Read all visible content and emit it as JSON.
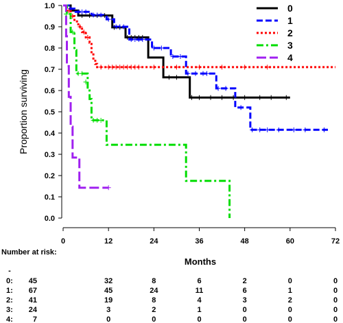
{
  "chart_data": {
    "type": "line",
    "subtype": "kaplan-meier step curves",
    "ylabel": "Proportion surviving",
    "xlabel": "Months",
    "xlim": [
      0,
      72
    ],
    "ylim": [
      0,
      1
    ],
    "x_ticks": [
      0,
      12,
      24,
      36,
      48,
      60,
      72
    ],
    "y_ticks": [
      "0.0",
      "0.1",
      "0.2",
      "0.3",
      "0.4",
      "0.5",
      "0.6",
      "0.7",
      "0.8",
      "0.9",
      "1.0"
    ],
    "grid": false,
    "legend_position": "top-right",
    "series": [
      {
        "name": "0",
        "color": "#000000",
        "dash": "solid",
        "steps": [
          [
            0,
            1.0
          ],
          [
            2,
            0.976
          ],
          [
            4,
            0.953
          ],
          [
            12,
            0.953
          ],
          [
            13,
            0.897
          ],
          [
            16,
            0.897
          ],
          [
            16.5,
            0.85
          ],
          [
            22,
            0.85
          ],
          [
            22.5,
            0.755
          ],
          [
            26,
            0.755
          ],
          [
            26.5,
            0.662
          ],
          [
            33,
            0.662
          ],
          [
            33.5,
            0.567
          ],
          [
            60,
            0.567
          ]
        ],
        "censors": [
          [
            5,
            0.953
          ],
          [
            7,
            0.953
          ],
          [
            9,
            0.953
          ],
          [
            11,
            0.953
          ],
          [
            13.5,
            0.897
          ],
          [
            15,
            0.897
          ],
          [
            17,
            0.85
          ],
          [
            18,
            0.85
          ],
          [
            19,
            0.85
          ],
          [
            20,
            0.85
          ],
          [
            21,
            0.85
          ],
          [
            28,
            0.662
          ],
          [
            30,
            0.662
          ],
          [
            34,
            0.567
          ],
          [
            36,
            0.567
          ],
          [
            39,
            0.567
          ],
          [
            42,
            0.567
          ],
          [
            45,
            0.567
          ],
          [
            48,
            0.567
          ],
          [
            52,
            0.567
          ],
          [
            55,
            0.567
          ],
          [
            59,
            0.567
          ]
        ]
      },
      {
        "name": "1",
        "color": "#0000ff",
        "dash": "dashed",
        "steps": [
          [
            0,
            1.0
          ],
          [
            1.5,
            0.985
          ],
          [
            3,
            0.97
          ],
          [
            7,
            0.97
          ],
          [
            7.5,
            0.955
          ],
          [
            11,
            0.955
          ],
          [
            11.5,
            0.935
          ],
          [
            13,
            0.935
          ],
          [
            13.5,
            0.9
          ],
          [
            17,
            0.9
          ],
          [
            17.5,
            0.84
          ],
          [
            23,
            0.84
          ],
          [
            23.5,
            0.8
          ],
          [
            28,
            0.8
          ],
          [
            28.5,
            0.76
          ],
          [
            32,
            0.76
          ],
          [
            32.5,
            0.68
          ],
          [
            40,
            0.68
          ],
          [
            40.5,
            0.61
          ],
          [
            45,
            0.61
          ],
          [
            45.5,
            0.52
          ],
          [
            49,
            0.52
          ],
          [
            49.5,
            0.415
          ],
          [
            70,
            0.415
          ]
        ],
        "censors": [
          [
            2,
            0.985
          ],
          [
            4,
            0.97
          ],
          [
            5,
            0.97
          ],
          [
            6,
            0.97
          ],
          [
            8,
            0.955
          ],
          [
            9,
            0.955
          ],
          [
            10,
            0.955
          ],
          [
            12,
            0.935
          ],
          [
            14,
            0.9
          ],
          [
            15,
            0.9
          ],
          [
            16,
            0.9
          ],
          [
            18,
            0.84
          ],
          [
            19,
            0.84
          ],
          [
            20,
            0.84
          ],
          [
            21,
            0.84
          ],
          [
            24,
            0.8
          ],
          [
            26,
            0.8
          ],
          [
            29,
            0.76
          ],
          [
            31,
            0.76
          ],
          [
            33,
            0.68
          ],
          [
            35,
            0.68
          ],
          [
            37,
            0.68
          ],
          [
            38,
            0.68
          ],
          [
            41,
            0.61
          ],
          [
            43,
            0.61
          ],
          [
            47,
            0.52
          ],
          [
            50,
            0.415
          ],
          [
            52,
            0.415
          ],
          [
            54,
            0.415
          ],
          [
            57,
            0.415
          ],
          [
            61,
            0.415
          ],
          [
            64,
            0.415
          ],
          [
            69,
            0.415
          ]
        ]
      },
      {
        "name": "2",
        "color": "#ff0000",
        "dash": "dotted",
        "steps": [
          [
            0,
            1.0
          ],
          [
            1,
            0.975
          ],
          [
            2,
            0.95
          ],
          [
            3,
            0.925
          ],
          [
            4,
            0.9
          ],
          [
            5,
            0.875
          ],
          [
            6,
            0.85
          ],
          [
            7,
            0.825
          ],
          [
            7.5,
            0.775
          ],
          [
            8,
            0.745
          ],
          [
            8.5,
            0.725
          ],
          [
            9,
            0.71
          ],
          [
            72,
            0.71
          ]
        ],
        "censors": [
          [
            1.5,
            0.975
          ],
          [
            2.5,
            0.95
          ],
          [
            4.5,
            0.9
          ],
          [
            5.5,
            0.875
          ],
          [
            6.5,
            0.85
          ],
          [
            10,
            0.71
          ],
          [
            12,
            0.71
          ],
          [
            13,
            0.71
          ],
          [
            14,
            0.71
          ],
          [
            15,
            0.71
          ],
          [
            16,
            0.71
          ],
          [
            17,
            0.71
          ],
          [
            18,
            0.71
          ],
          [
            19,
            0.71
          ],
          [
            20,
            0.71
          ],
          [
            24,
            0.71
          ],
          [
            30,
            0.71
          ],
          [
            36,
            0.71
          ],
          [
            42,
            0.71
          ],
          [
            48,
            0.71
          ],
          [
            54,
            0.71
          ]
        ]
      },
      {
        "name": "3",
        "color": "#00dd00",
        "dash": "dashdot",
        "steps": [
          [
            0,
            1.0
          ],
          [
            1,
            0.96
          ],
          [
            2,
            0.875
          ],
          [
            3,
            0.79
          ],
          [
            3.5,
            0.68
          ],
          [
            6,
            0.68
          ],
          [
            6.5,
            0.6
          ],
          [
            7,
            0.56
          ],
          [
            7.5,
            0.46
          ],
          [
            11,
            0.46
          ],
          [
            11.5,
            0.345
          ],
          [
            32,
            0.345
          ],
          [
            32.5,
            0.175
          ],
          [
            43.5,
            0.175
          ],
          [
            44,
            0.0
          ]
        ],
        "censors": [
          [
            0.8,
            0.96
          ],
          [
            2.5,
            0.875
          ],
          [
            4,
            0.68
          ],
          [
            5,
            0.68
          ],
          [
            6,
            0.64
          ],
          [
            8,
            0.46
          ],
          [
            9,
            0.46
          ],
          [
            10,
            0.46
          ]
        ]
      },
      {
        "name": "4",
        "color": "#a020f0",
        "dash": "longdash",
        "steps": [
          [
            0,
            1.0
          ],
          [
            0.8,
            0.855
          ],
          [
            1,
            0.715
          ],
          [
            1.5,
            0.57
          ],
          [
            2,
            0.43
          ],
          [
            2.5,
            0.285
          ],
          [
            4,
            0.285
          ],
          [
            4.3,
            0.143
          ],
          [
            12,
            0.143
          ]
        ],
        "censors": [
          [
            12,
            0.143
          ]
        ]
      }
    ],
    "risk_table": {
      "title": "Number at risk:",
      "dash_label": "-",
      "times": [
        0,
        12,
        24,
        36,
        48,
        60,
        72
      ],
      "rows": [
        {
          "label": "0:",
          "values": [
            "45",
            "32",
            "8",
            "6",
            "2",
            "0",
            "0"
          ]
        },
        {
          "label": "1:",
          "values": [
            "67",
            "45",
            "24",
            "11",
            "6",
            "1",
            "0"
          ]
        },
        {
          "label": "2:",
          "values": [
            "41",
            "19",
            "8",
            "4",
            "3",
            "2",
            "0"
          ]
        },
        {
          "label": "3:",
          "values": [
            "24",
            "3",
            "2",
            "1",
            "0",
            "0",
            "0"
          ]
        },
        {
          "label": "4:",
          "values": [
            "7",
            "0",
            "0",
            "0",
            "0",
            "0",
            "0"
          ]
        }
      ]
    }
  }
}
